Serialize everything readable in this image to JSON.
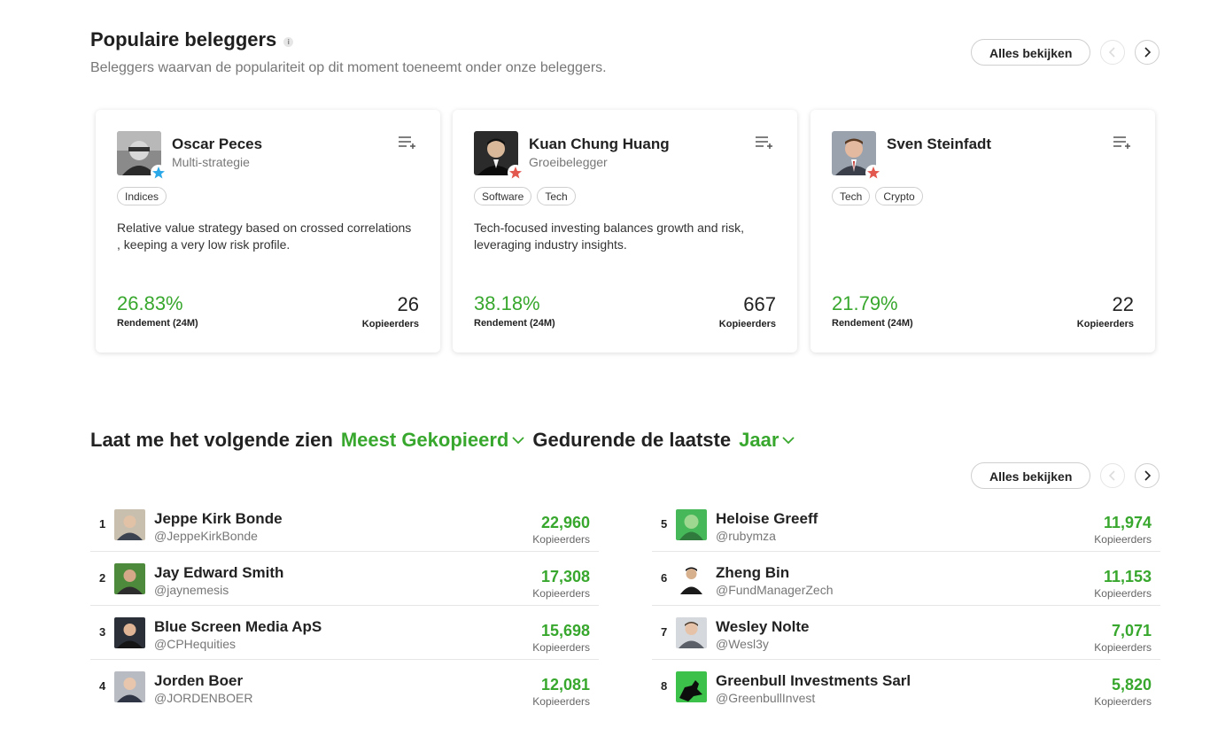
{
  "popular": {
    "title": "Populaire beleggers",
    "info": "i",
    "subtitle": "Beleggers waarvan de populariteit op dit moment toeneemt onder onze beleggers.",
    "view_all": "Alles bekijken",
    "cards": [
      {
        "name": "Oscar Peces",
        "style": "Multi-strategie",
        "tags": [
          "Indices"
        ],
        "description": "Relative value strategy based on crossed correlations , keeping a very low risk profile.",
        "gain": "26.83%",
        "gain_label": "Rendement (24M)",
        "copiers": "26",
        "copiers_label": "Kopieerders",
        "star_color": "#2aa8e8"
      },
      {
        "name": "Kuan Chung Huang",
        "style": "Groeibelegger",
        "tags": [
          "Software",
          "Tech"
        ],
        "description": "Tech-focused investing balances growth and risk, leveraging industry insights.",
        "gain": "38.18%",
        "gain_label": "Rendement (24M)",
        "copiers": "667",
        "copiers_label": "Kopieerders",
        "star_color": "#e2584e"
      },
      {
        "name": "Sven Steinfadt",
        "style": "",
        "tags": [
          "Tech",
          "Crypto"
        ],
        "description": "",
        "gain": "21.79%",
        "gain_label": "Rendement (24M)",
        "copiers": "22",
        "copiers_label": "Kopieerders",
        "star_color": "#e2584e"
      }
    ]
  },
  "filters": {
    "prefix": "Laat me het volgende zien",
    "sort_value": "Meest Gekopieerd",
    "middle": "Gedurende de laatste",
    "period_value": "Jaar",
    "view_all": "Alles bekijken"
  },
  "ranking": {
    "left": [
      {
        "rank": "1",
        "name": "Jeppe Kirk Bonde",
        "handle": "@JeppeKirkBonde",
        "value": "22,960",
        "label": "Kopieerders"
      },
      {
        "rank": "2",
        "name": "Jay Edward Smith",
        "handle": "@jaynemesis",
        "value": "17,308",
        "label": "Kopieerders"
      },
      {
        "rank": "3",
        "name": "Blue Screen Media ApS",
        "handle": "@CPHequities",
        "value": "15,698",
        "label": "Kopieerders"
      },
      {
        "rank": "4",
        "name": "Jorden Boer",
        "handle": "@JORDENBOER",
        "value": "12,081",
        "label": "Kopieerders"
      }
    ],
    "right": [
      {
        "rank": "5",
        "name": "Heloise Greeff",
        "handle": "@rubymza",
        "value": "11,974",
        "label": "Kopieerders"
      },
      {
        "rank": "6",
        "name": "Zheng Bin",
        "handle": "@FundManagerZech",
        "value": "11,153",
        "label": "Kopieerders"
      },
      {
        "rank": "7",
        "name": "Wesley Nolte",
        "handle": "@Wesl3y",
        "value": "7,071",
        "label": "Kopieerders"
      },
      {
        "rank": "8",
        "name": "Greenbull Investments Sarl",
        "handle": "@GreenbullInvest",
        "value": "5,820",
        "label": "Kopieerders"
      }
    ]
  },
  "colors": {
    "accent_green": "#38a72d",
    "muted_text": "#777777"
  }
}
